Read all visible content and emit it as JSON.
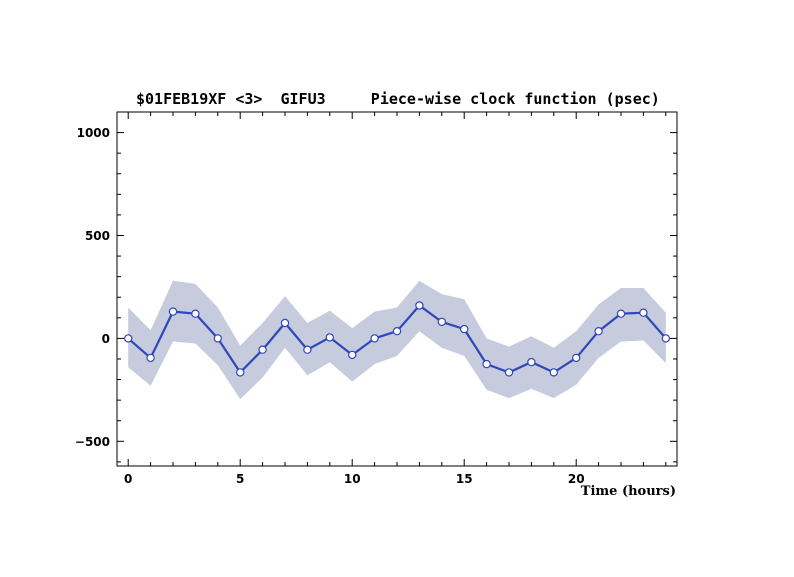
{
  "chart_data": {
    "type": "line",
    "title": "$01FEB19XF <3>  GIFU3     Piece-wise clock function (psec)",
    "xlabel": "Time (hours)",
    "ylabel": "",
    "xlim": [
      -0.5,
      24.5
    ],
    "ylim": [
      -620,
      1100
    ],
    "x_ticks": [
      0,
      5,
      10,
      15,
      20
    ],
    "y_ticks": [
      -500,
      0,
      500,
      1000
    ],
    "x_tick_labels": [
      "0",
      "5",
      "10",
      "15",
      "20"
    ],
    "y_tick_labels": [
      "−500",
      "0",
      "500",
      "1000"
    ],
    "grid": false,
    "colors": {
      "line": "#2f47b8",
      "band": "#c6cbdd",
      "marker_fill": "#ffffff",
      "axis": "#000000"
    },
    "series": [
      {
        "x": [
          0,
          1,
          2,
          3,
          4,
          5,
          6,
          7,
          8,
          9,
          10,
          11,
          12,
          13,
          14,
          15,
          16,
          17,
          18,
          19,
          20,
          21,
          22,
          23,
          24
        ],
        "y": [
          0,
          -95,
          130,
          120,
          0,
          -165,
          -55,
          75,
          -55,
          5,
          -80,
          0,
          35,
          160,
          80,
          45,
          -125,
          -165,
          -115,
          -165,
          -95,
          35,
          120,
          125,
          0
        ],
        "upper": [
          150,
          40,
          280,
          265,
          150,
          -35,
          75,
          205,
          75,
          135,
          50,
          130,
          150,
          280,
          215,
          190,
          0,
          -40,
          10,
          -45,
          35,
          165,
          245,
          245,
          125
        ],
        "lower": [
          -140,
          -230,
          -15,
          -25,
          -130,
          -295,
          -190,
          -45,
          -180,
          -115,
          -210,
          -125,
          -85,
          35,
          -45,
          -85,
          -250,
          -290,
          -245,
          -290,
          -225,
          -95,
          -15,
          -10,
          -120
        ]
      }
    ]
  }
}
